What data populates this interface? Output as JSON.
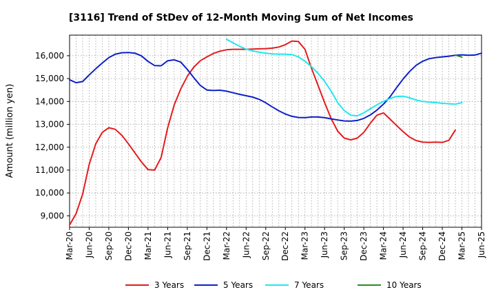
{
  "chart_data": {
    "type": "line",
    "title": "[3116]  Trend of StDev of 12-Month Moving Sum of Net Incomes",
    "ylabel": "Amount (million yen)",
    "xlabel": "",
    "ylim": [
      8500,
      16900
    ],
    "yticks": [
      9000,
      10000,
      11000,
      12000,
      13000,
      14000,
      15000,
      16000
    ],
    "ytick_labels": [
      "9,000",
      "10,000",
      "11,000",
      "12,000",
      "13,000",
      "14,000",
      "15,000",
      "16,000"
    ],
    "x_start": "Mar-20",
    "x_end": "Jun-25",
    "x_tick_labels": [
      "Mar-20",
      "Jun-20",
      "Sep-20",
      "Dec-20",
      "Mar-21",
      "Jun-21",
      "Sep-21",
      "Dec-21",
      "Mar-22",
      "Jun-22",
      "Sep-22",
      "Dec-22",
      "Mar-23",
      "Jun-23",
      "Sep-23",
      "Dec-23",
      "Mar-24",
      "Jun-24",
      "Sep-24",
      "Dec-24",
      "Mar-25",
      "Jun-25"
    ],
    "grid": true,
    "legend_position": "bottom",
    "series": [
      {
        "name": "3 Years",
        "color": "#e41a1c",
        "start": "Mar-20",
        "values": [
          8600,
          9100,
          9950,
          11250,
          12150,
          12650,
          12850,
          12780,
          12520,
          12150,
          11750,
          11350,
          11020,
          11000,
          11550,
          12850,
          13850,
          14550,
          15100,
          15500,
          15780,
          15950,
          16100,
          16200,
          16260,
          16280,
          16280,
          16280,
          16290,
          16300,
          16310,
          16330,
          16380,
          16480,
          16640,
          16620,
          16280,
          15450,
          14700,
          13950,
          13250,
          12700,
          12400,
          12320,
          12400,
          12650,
          13050,
          13400,
          13500,
          13230,
          12950,
          12680,
          12440,
          12290,
          12220,
          12210,
          12220,
          12210,
          12300,
          12750
        ]
      },
      {
        "name": "5 Years",
        "color": "#0b1fc8",
        "start": "Mar-20",
        "values": [
          14950,
          14820,
          14870,
          15160,
          15430,
          15680,
          15920,
          16070,
          16130,
          16140,
          16110,
          15990,
          15750,
          15570,
          15560,
          15780,
          15820,
          15720,
          15400,
          15040,
          14700,
          14500,
          14480,
          14490,
          14450,
          14380,
          14310,
          14250,
          14190,
          14090,
          13940,
          13760,
          13590,
          13450,
          13350,
          13300,
          13290,
          13320,
          13320,
          13290,
          13240,
          13190,
          13150,
          13140,
          13170,
          13260,
          13410,
          13620,
          13880,
          14200,
          14600,
          14980,
          15310,
          15580,
          15760,
          15870,
          15920,
          15950,
          15980,
          16020,
          16040,
          16020,
          16030,
          16110
        ]
      },
      {
        "name": "7 Years",
        "color": "#1ee8ee",
        "start": "Mar-22",
        "values": [
          16720,
          16560,
          16410,
          16290,
          16210,
          16150,
          16110,
          16080,
          16070,
          16070,
          16050,
          15950,
          15760,
          15520,
          15230,
          14880,
          14450,
          13950,
          13600,
          13400,
          13370,
          13500,
          13680,
          13850,
          14000,
          14130,
          14220,
          14230,
          14160,
          14060,
          14000,
          13970,
          13950,
          13920,
          13900,
          13880,
          13950
        ]
      },
      {
        "name": "10 Years",
        "color": "#2a8a22",
        "start": "Feb-25",
        "values": [
          16030,
          15940
        ]
      }
    ]
  }
}
